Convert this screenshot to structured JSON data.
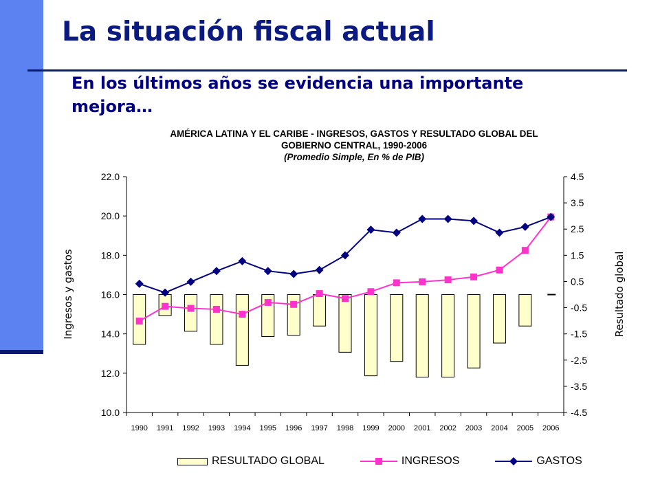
{
  "slide": {
    "title": "La situación fiscal actual",
    "subtitle": "En los últimos años se evidencia una importante mejora…",
    "colors": {
      "accent_bar": "#5b82f0",
      "title": "#0a1a80",
      "rule": "#0a1a6e"
    }
  },
  "chart_data": {
    "type": "bar+line",
    "title_line1": "AMÉRICA LATINA Y EL CARIBE - INGRESOS, GASTOS Y RESULTADO GLOBAL DEL",
    "title_line2": "GOBIERNO CENTRAL, 1990-2006",
    "subtitle": "(Promedio Simple, En %  de PIB)",
    "categories": [
      "1990",
      "1991",
      "1992",
      "1993",
      "1994",
      "1995",
      "1996",
      "1997",
      "1998",
      "1999",
      "2000",
      "2001",
      "2002",
      "2003",
      "2004",
      "2005",
      "2006"
    ],
    "y_left": {
      "label": "Ingresos y gastos",
      "min": 10.0,
      "max": 22.0,
      "step": 2.0,
      "ticks": [
        "22.0",
        "20.0",
        "18.0",
        "16.0",
        "14.0",
        "12.0",
        "10.0"
      ]
    },
    "y_right": {
      "label": "Resultado global",
      "min": -4.5,
      "max": 4.5,
      "step": 1.0,
      "ticks": [
        "4.5",
        "3.5",
        "2.5",
        "1.5",
        "0.5",
        "-0.5",
        "-1.5",
        "-2.5",
        "-3.5",
        "-4.5"
      ]
    },
    "series": [
      {
        "name": "RESULTADO GLOBAL",
        "type": "bar",
        "axis": "right",
        "color": "#ffffcc",
        "values": [
          -1.9,
          -0.8,
          -1.4,
          -1.9,
          -2.7,
          -1.6,
          -1.55,
          -1.2,
          -2.2,
          -3.1,
          -2.55,
          -3.15,
          -3.15,
          -2.8,
          -1.85,
          -1.2,
          0.0
        ]
      },
      {
        "name": "INGRESOS",
        "type": "line",
        "axis": "left",
        "color": "#ff33cc",
        "marker": "square",
        "values": [
          14.65,
          15.4,
          15.3,
          15.25,
          15.0,
          15.6,
          15.5,
          16.05,
          15.8,
          16.15,
          16.6,
          16.65,
          16.75,
          16.9,
          17.25,
          18.25,
          19.95
        ]
      },
      {
        "name": "GASTOS",
        "type": "line",
        "axis": "left",
        "color": "#000080",
        "marker": "diamond",
        "values": [
          16.55,
          16.1,
          16.65,
          17.2,
          17.7,
          17.2,
          17.05,
          17.25,
          18.0,
          19.3,
          19.15,
          19.85,
          19.85,
          19.75,
          19.15,
          19.45,
          19.95
        ]
      }
    ],
    "legend_position": "bottom",
    "grid": false
  }
}
